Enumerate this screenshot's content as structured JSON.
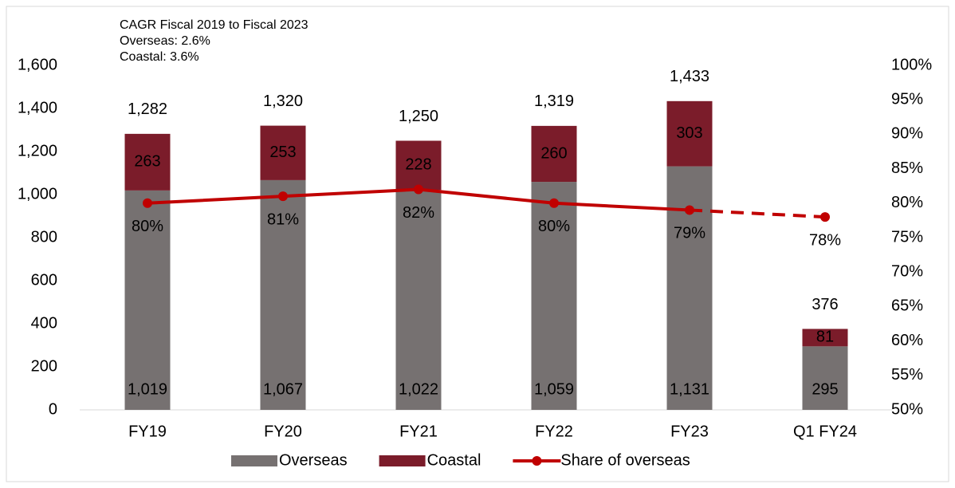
{
  "chart_data": {
    "type": "bar",
    "stacked": true,
    "annotations": [
      "CAGR Fiscal 2019 to Fiscal 2023",
      "Overseas: 2.6%",
      "Coastal: 3.6%"
    ],
    "categories": [
      "FY19",
      "FY20",
      "FY21",
      "FY22",
      "FY23",
      "Q1 FY24"
    ],
    "series": [
      {
        "name": "Overseas",
        "color": "#767171",
        "values": [
          1019,
          1067,
          1022,
          1059,
          1131,
          295
        ],
        "value_labels": [
          "1,019",
          "1,067",
          "1,022",
          "1,059",
          "1,131",
          "295"
        ]
      },
      {
        "name": "Coastal",
        "color": "#7b1c2a",
        "values": [
          263,
          253,
          228,
          260,
          303,
          81
        ],
        "value_labels": [
          "263",
          "253",
          "228",
          "260",
          "303",
          "81"
        ]
      },
      {
        "name": "Share of overseas",
        "type": "line",
        "axis": "y2",
        "color": "#c00000",
        "values": [
          80,
          81,
          82,
          80,
          79,
          78
        ],
        "value_labels": [
          "80%",
          "81%",
          "82%",
          "80%",
          "79%",
          "78%"
        ],
        "dash_from_index": 4
      }
    ],
    "totals": {
      "values": [
        1282,
        1320,
        1250,
        1319,
        1433,
        376
      ],
      "value_labels": [
        "1,282",
        "1,320",
        "1,250",
        "1,319",
        "1,433",
        "376"
      ]
    },
    "ylim": [
      0,
      1600
    ],
    "yticks": [
      0,
      200,
      400,
      600,
      800,
      {
        "value": 1000,
        "label": "1,000"
      },
      {
        "value": 1200,
        "label": "1,200"
      },
      {
        "value": 1400,
        "label": "1,400"
      },
      {
        "value": 1600,
        "label": "1,600"
      }
    ],
    "y2lim": [
      50,
      100
    ],
    "y2ticks": [
      {
        "value": 50,
        "label": "50%"
      },
      {
        "value": 55,
        "label": "55%"
      },
      {
        "value": 60,
        "label": "60%"
      },
      {
        "value": 65,
        "label": "65%"
      },
      {
        "value": 70,
        "label": "70%"
      },
      {
        "value": 75,
        "label": "75%"
      },
      {
        "value": 80,
        "label": "80%"
      },
      {
        "value": 85,
        "label": "85%"
      },
      {
        "value": 90,
        "label": "90%"
      },
      {
        "value": 95,
        "label": "95%"
      },
      {
        "value": 100,
        "label": "100%"
      }
    ],
    "legend": "bottom"
  }
}
